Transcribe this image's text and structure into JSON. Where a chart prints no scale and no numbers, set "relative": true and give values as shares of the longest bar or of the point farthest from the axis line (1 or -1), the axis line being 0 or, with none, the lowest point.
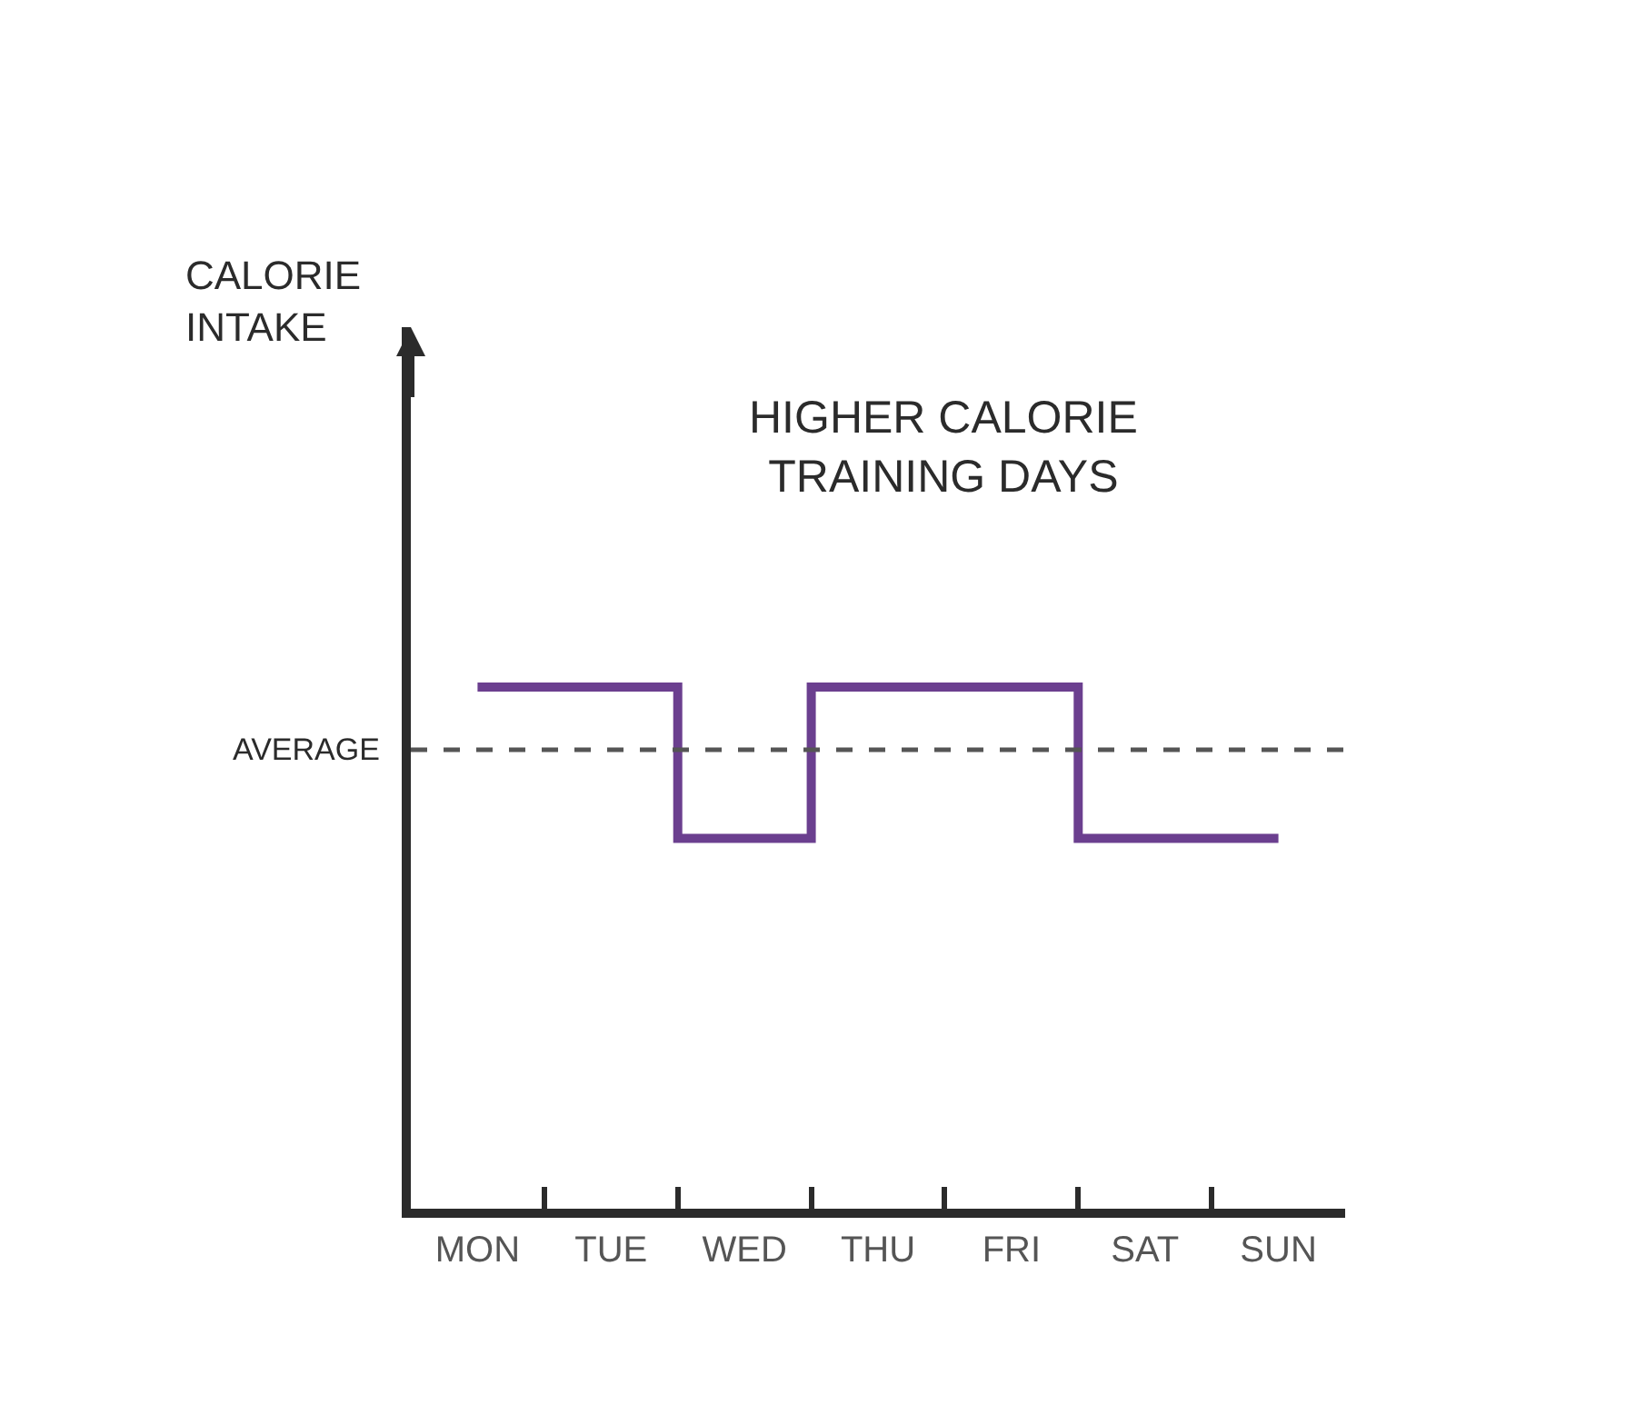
{
  "chart_data": {
    "type": "step",
    "relative": true,
    "title": "HIGHER CALORIE\nTRAINING DAYS",
    "annotations": [
      "CALORIE\nINTAKE"
    ],
    "categories": [
      "MON",
      "TUE",
      "WED",
      "THU",
      "FRI",
      "SAT",
      "SUN"
    ],
    "series": [
      {
        "color": "#6b3f8f",
        "values": [
          1,
          1,
          0.71,
          1,
          1,
          0.71,
          0.71
        ]
      }
    ],
    "ref_lines": [
      {
        "axis": "y",
        "value": 0.88,
        "label": "AVERAGE",
        "color": "#555555",
        "line_style": "dashed"
      }
    ],
    "marker": "none",
    "line_style": "solid"
  }
}
